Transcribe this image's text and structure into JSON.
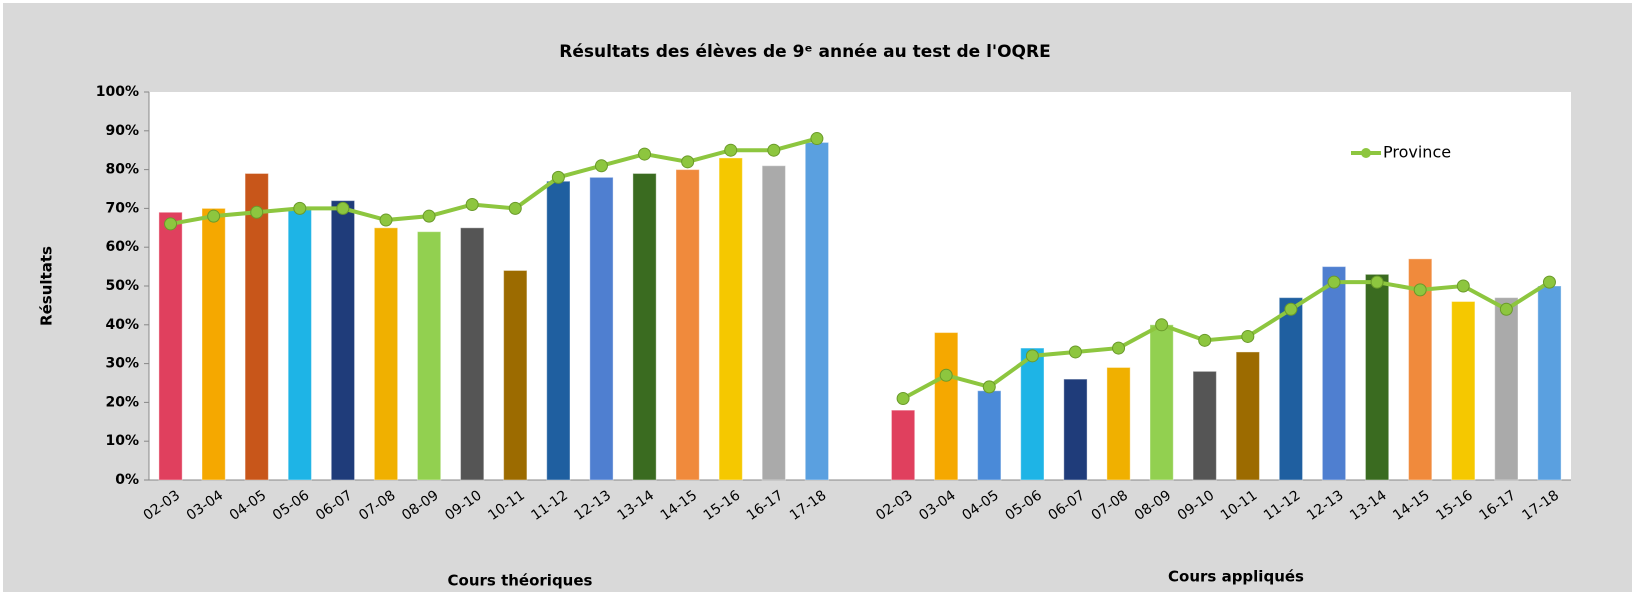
{
  "chart_data": {
    "type": "bar",
    "title": "Résultats des élèves de 9ᵉ année au test de l'OQRE",
    "y_label": "Résultats",
    "group_labels": [
      "Cours théoriques",
      "Cours appliqués"
    ],
    "categories": [
      "02-03",
      "03-04",
      "04-05",
      "05-06",
      "06-07",
      "07-08",
      "08-09",
      "09-10",
      "10-11",
      "11-12",
      "12-13",
      "13-14",
      "14-15",
      "15-16",
      "16-17",
      "17-18",
      null,
      "02-03",
      "03-04",
      "04-05",
      "05-06",
      "06-07",
      "07-08",
      "08-09",
      "09-10",
      "10-11",
      "11-12",
      "12-13",
      "13-14",
      "14-15",
      "15-16",
      "16-17",
      "17-18"
    ],
    "series": [
      {
        "type": "bar",
        "colors": [
          "#e0405e",
          "#f5a800",
          "#c8561a",
          "#1eb4e6",
          "#1f3c7a",
          "#f0b000",
          "#92d050",
          "#555555",
          "#9c6b00",
          "#1f5fa0",
          "#4f7fd0",
          "#3a6b20",
          "#f08a3c",
          "#f5c800",
          "#aaaaaa",
          "#5aa0e0",
          null,
          "#e0405e",
          "#f5a800",
          "#4a8ad8",
          "#1eb4e6",
          "#1f3c7a",
          "#f0b000",
          "#92d050",
          "#555555",
          "#9c6b00",
          "#1f5fa0",
          "#4f7fd0",
          "#3a6b20",
          "#f08a3c",
          "#f5c800",
          "#aaaaaa",
          "#5aa0e0"
        ],
        "values": [
          69,
          70,
          79,
          70,
          72,
          65,
          64,
          65,
          54,
          77,
          78,
          79,
          80,
          83,
          81,
          87,
          null,
          18,
          38,
          23,
          34,
          26,
          29,
          40,
          28,
          33,
          47,
          55,
          53,
          57,
          46,
          47,
          50
        ]
      },
      {
        "type": "line",
        "name": "Province",
        "color": "#8dc63f",
        "values": [
          66,
          68,
          69,
          70,
          70,
          67,
          68,
          71,
          70,
          78,
          81,
          84,
          82,
          85,
          85,
          88,
          null,
          21,
          27,
          24,
          32,
          33,
          34,
          40,
          36,
          37,
          44,
          51,
          51,
          49,
          50,
          44,
          51
        ]
      }
    ],
    "ylim": [
      0,
      100
    ],
    "yticks": [
      {
        "value": 0,
        "label": "0%"
      },
      {
        "value": 10,
        "label": "10%"
      },
      {
        "value": 20,
        "label": "20%"
      },
      {
        "value": 30,
        "label": "30%"
      },
      {
        "value": 40,
        "label": "40%"
      },
      {
        "value": 50,
        "label": "50%"
      },
      {
        "value": 60,
        "label": "60%"
      },
      {
        "value": 70,
        "label": "70%"
      },
      {
        "value": 80,
        "label": "80%"
      },
      {
        "value": 90,
        "label": "90%"
      },
      {
        "value": 100,
        "label": "100%"
      }
    ],
    "legend": "upper right"
  }
}
